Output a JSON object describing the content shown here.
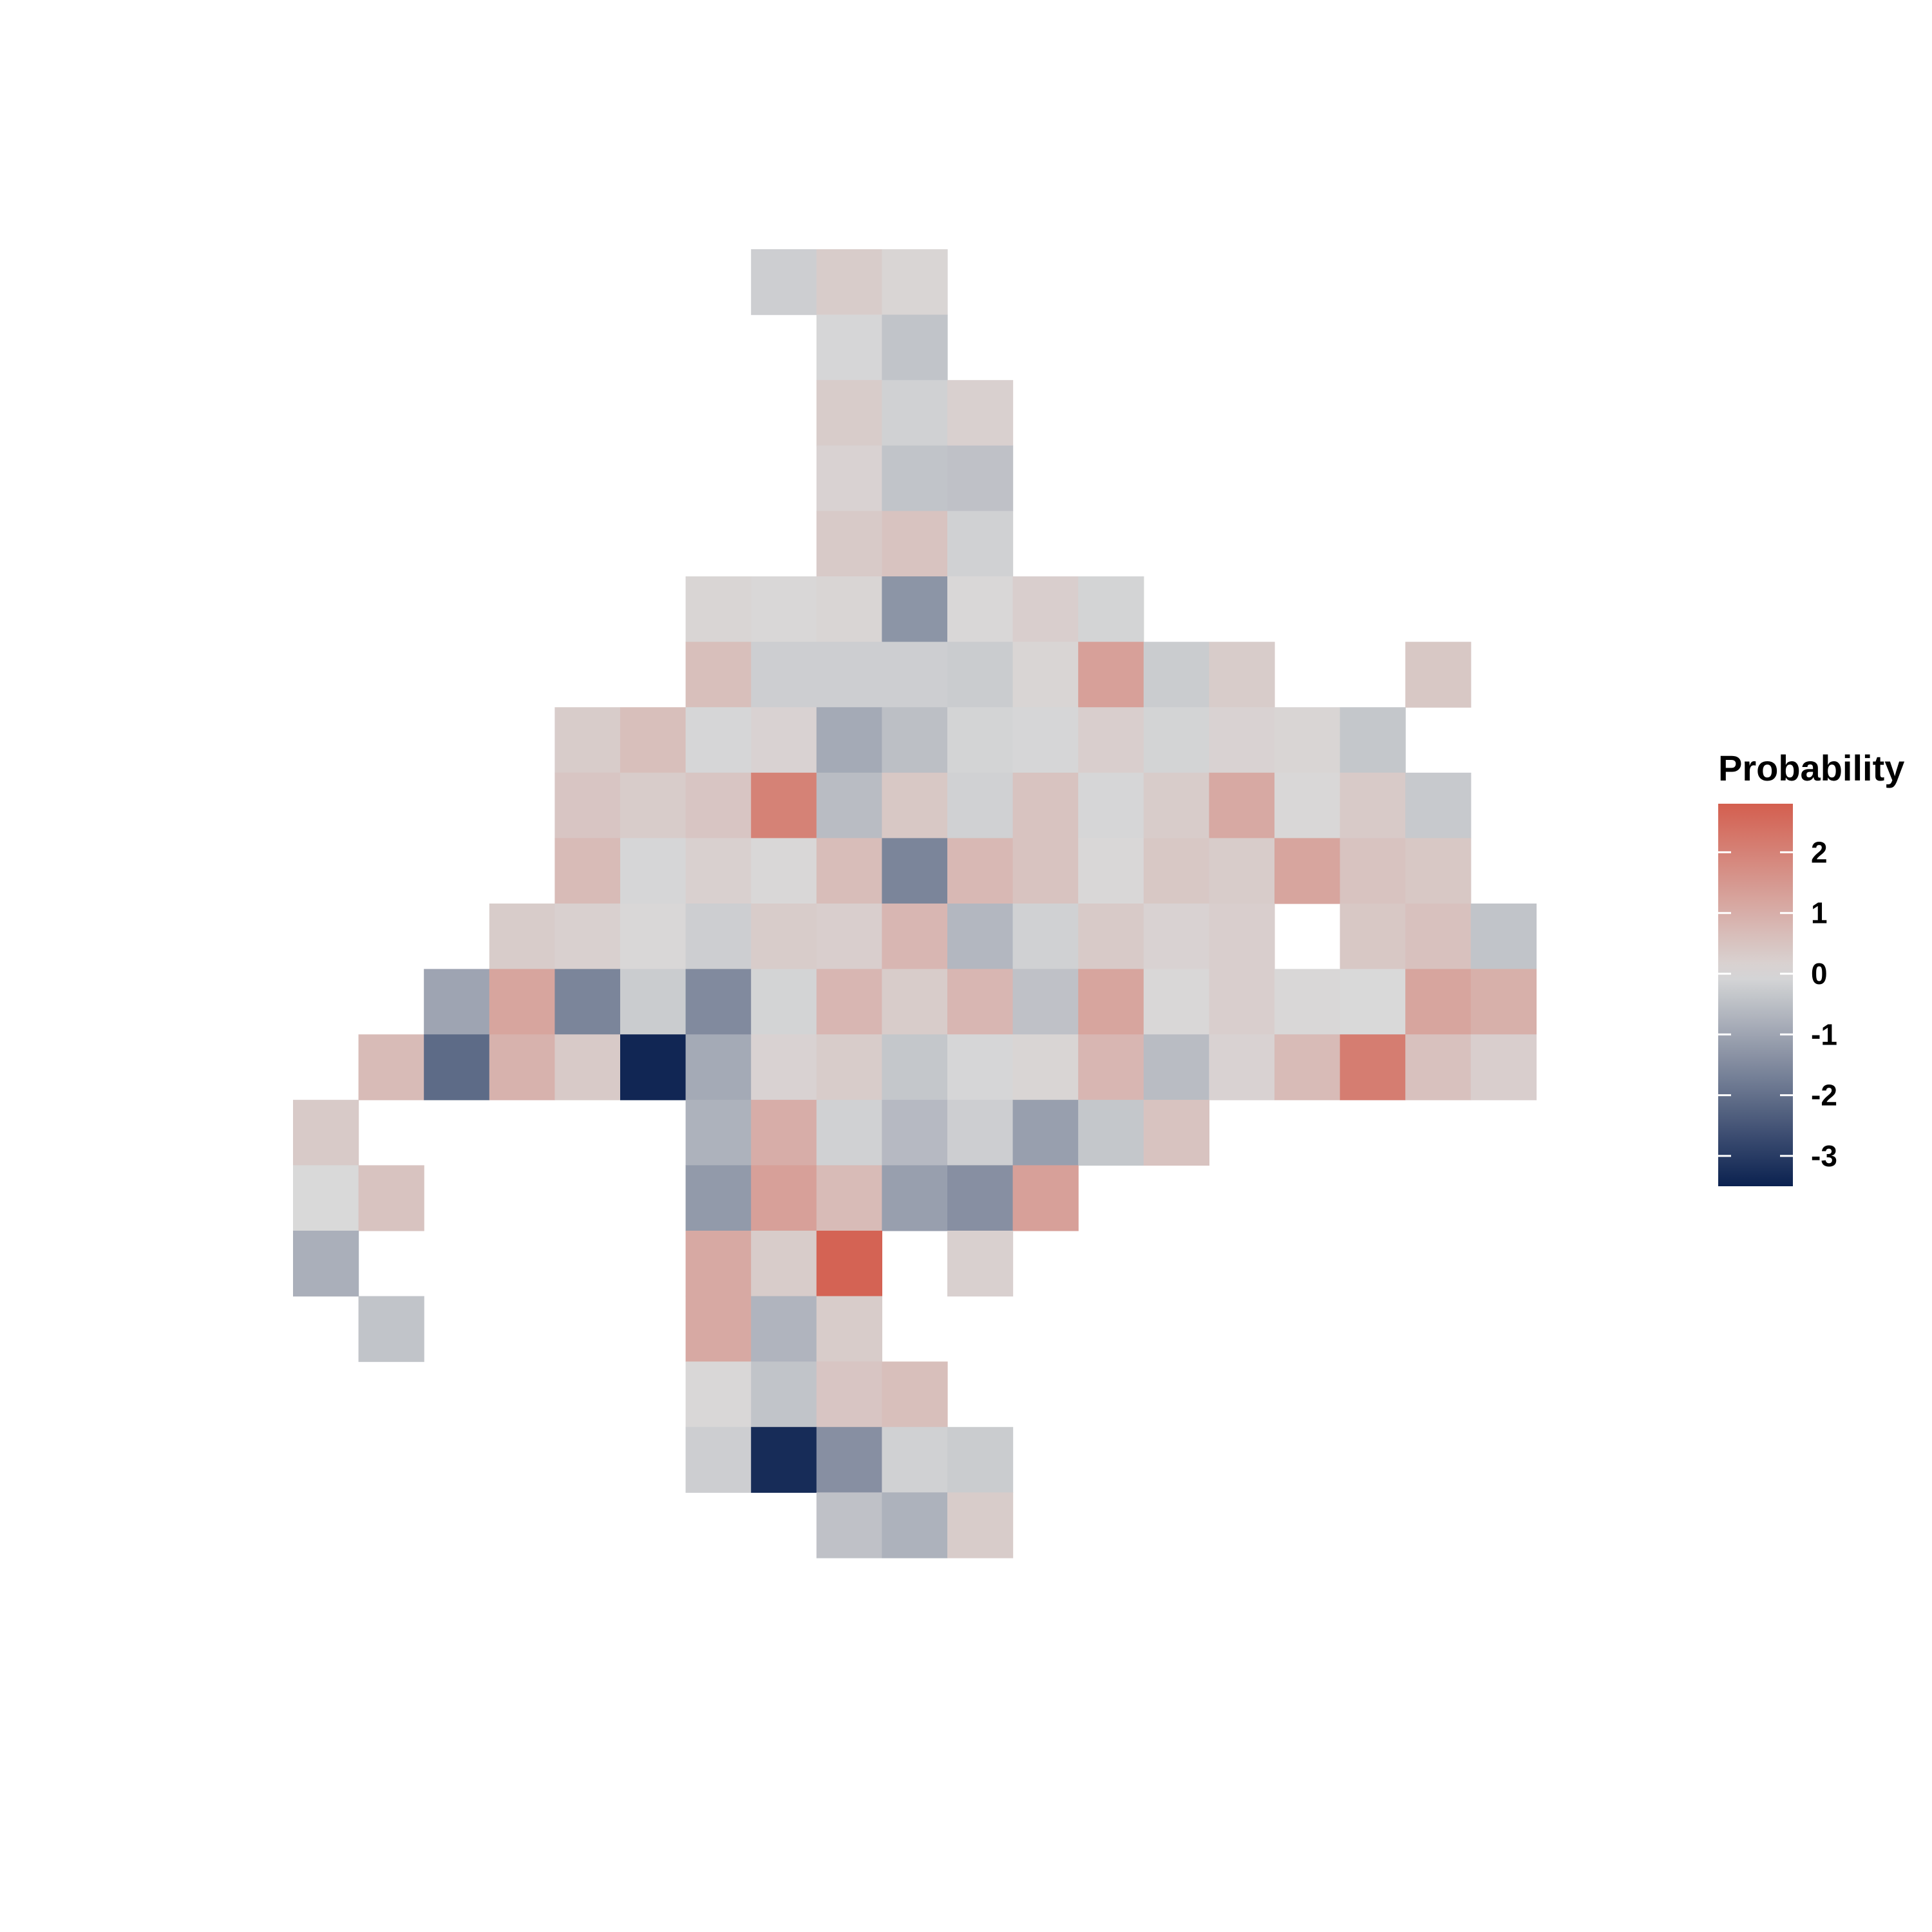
{
  "chart_data": {
    "type": "heatmap",
    "title": "",
    "xlabel": "",
    "ylabel": "",
    "grid": false,
    "axes_visible": false,
    "legend": {
      "title": "Probability",
      "placement": "right",
      "ticks": [
        2,
        1,
        0,
        -1,
        -2,
        -3
      ],
      "range": [
        -3.5,
        2.8
      ]
    },
    "colors": {
      "low": "#0b2150",
      "mid": "#d9d9d9",
      "high": "#d45f4f",
      "background": "#ffffff"
    },
    "x": [
      1,
      2,
      3,
      4,
      5,
      6,
      7,
      8,
      9,
      10,
      11,
      12,
      13,
      14,
      15,
      16,
      17,
      18,
      19
    ],
    "y": [
      1,
      2,
      3,
      4,
      5,
      6,
      7,
      8,
      9,
      10,
      11,
      12,
      13,
      14,
      15,
      16,
      17,
      18,
      19,
      20
    ],
    "cells": [
      {
        "x": 8,
        "y": 20,
        "value": -0.2
      },
      {
        "x": 9,
        "y": 20,
        "value": 0.3
      },
      {
        "x": 10,
        "y": 20,
        "value": 0.1
      },
      {
        "x": 9,
        "y": 19,
        "value": -0.05
      },
      {
        "x": 10,
        "y": 19,
        "value": -0.4
      },
      {
        "x": 9,
        "y": 18,
        "value": 0.3
      },
      {
        "x": 10,
        "y": 18,
        "value": -0.15
      },
      {
        "x": 11,
        "y": 18,
        "value": 0.2
      },
      {
        "x": 9,
        "y": 17,
        "value": 0.15
      },
      {
        "x": 10,
        "y": 17,
        "value": -0.4
      },
      {
        "x": 11,
        "y": 17,
        "value": -0.45
      },
      {
        "x": 9,
        "y": 16,
        "value": 0.35
      },
      {
        "x": 10,
        "y": 16,
        "value": 0.5
      },
      {
        "x": 11,
        "y": 16,
        "value": -0.15
      },
      {
        "x": 7,
        "y": 15,
        "value": 0.1
      },
      {
        "x": 8,
        "y": 15,
        "value": 0.05
      },
      {
        "x": 9,
        "y": 15,
        "value": 0.1
      },
      {
        "x": 10,
        "y": 15,
        "value": -1.3
      },
      {
        "x": 11,
        "y": 15,
        "value": 0.05
      },
      {
        "x": 12,
        "y": 15,
        "value": 0.25
      },
      {
        "x": 13,
        "y": 15,
        "value": -0.1
      },
      {
        "x": 7,
        "y": 14,
        "value": 0.6
      },
      {
        "x": 8,
        "y": 14,
        "value": -0.2
      },
      {
        "x": 9,
        "y": 14,
        "value": -0.2
      },
      {
        "x": 10,
        "y": 14,
        "value": -0.2
      },
      {
        "x": 11,
        "y": 14,
        "value": -0.25
      },
      {
        "x": 12,
        "y": 14,
        "value": 0.1
      },
      {
        "x": 13,
        "y": 14,
        "value": 1.3
      },
      {
        "x": 14,
        "y": 14,
        "value": -0.25
      },
      {
        "x": 15,
        "y": 14,
        "value": 0.3
      },
      {
        "x": 18,
        "y": 14,
        "value": 0.4
      },
      {
        "x": 5,
        "y": 13,
        "value": 0.3
      },
      {
        "x": 6,
        "y": 13,
        "value": 0.6
      },
      {
        "x": 7,
        "y": 13,
        "value": -0.05
      },
      {
        "x": 8,
        "y": 13,
        "value": 0.15
      },
      {
        "x": 9,
        "y": 13,
        "value": -0.9
      },
      {
        "x": 10,
        "y": 13,
        "value": -0.5
      },
      {
        "x": 11,
        "y": 13,
        "value": -0.1
      },
      {
        "x": 12,
        "y": 13,
        "value": -0.05
      },
      {
        "x": 13,
        "y": 13,
        "value": 0.25
      },
      {
        "x": 14,
        "y": 13,
        "value": -0.1
      },
      {
        "x": 15,
        "y": 13,
        "value": 0.15
      },
      {
        "x": 16,
        "y": 13,
        "value": 0.1
      },
      {
        "x": 17,
        "y": 13,
        "value": -0.35
      },
      {
        "x": 5,
        "y": 12,
        "value": 0.45
      },
      {
        "x": 6,
        "y": 12,
        "value": 0.3
      },
      {
        "x": 7,
        "y": 12,
        "value": 0.45
      },
      {
        "x": 8,
        "y": 12,
        "value": 2.0
      },
      {
        "x": 9,
        "y": 12,
        "value": -0.55
      },
      {
        "x": 10,
        "y": 12,
        "value": 0.4
      },
      {
        "x": 11,
        "y": 12,
        "value": -0.15
      },
      {
        "x": 12,
        "y": 12,
        "value": 0.5
      },
      {
        "x": 13,
        "y": 12,
        "value": -0.05
      },
      {
        "x": 14,
        "y": 12,
        "value": 0.3
      },
      {
        "x": 15,
        "y": 12,
        "value": 1.1
      },
      {
        "x": 16,
        "y": 12,
        "value": 0.05
      },
      {
        "x": 17,
        "y": 12,
        "value": 0.35
      },
      {
        "x": 18,
        "y": 12,
        "value": -0.3
      },
      {
        "x": 5,
        "y": 11,
        "value": 0.7
      },
      {
        "x": 6,
        "y": 11,
        "value": -0.05
      },
      {
        "x": 7,
        "y": 11,
        "value": 0.2
      },
      {
        "x": 8,
        "y": 11,
        "value": 0.05
      },
      {
        "x": 9,
        "y": 11,
        "value": 0.65
      },
      {
        "x": 10,
        "y": 11,
        "value": -1.6
      },
      {
        "x": 11,
        "y": 11,
        "value": 0.75
      },
      {
        "x": 12,
        "y": 11,
        "value": 0.5
      },
      {
        "x": 13,
        "y": 11,
        "value": 0.05
      },
      {
        "x": 14,
        "y": 11,
        "value": 0.4
      },
      {
        "x": 15,
        "y": 11,
        "value": 0.3
      },
      {
        "x": 16,
        "y": 11,
        "value": 1.2
      },
      {
        "x": 17,
        "y": 11,
        "value": 0.5
      },
      {
        "x": 18,
        "y": 11,
        "value": 0.4
      },
      {
        "x": 4,
        "y": 10,
        "value": 0.3
      },
      {
        "x": 5,
        "y": 10,
        "value": 0.2
      },
      {
        "x": 6,
        "y": 10,
        "value": 0.05
      },
      {
        "x": 7,
        "y": 10,
        "value": -0.2
      },
      {
        "x": 8,
        "y": 10,
        "value": 0.3
      },
      {
        "x": 9,
        "y": 10,
        "value": 0.25
      },
      {
        "x": 10,
        "y": 10,
        "value": 0.8
      },
      {
        "x": 11,
        "y": 10,
        "value": -0.65
      },
      {
        "x": 12,
        "y": 10,
        "value": -0.15
      },
      {
        "x": 13,
        "y": 10,
        "value": 0.35
      },
      {
        "x": 14,
        "y": 10,
        "value": 0.15
      },
      {
        "x": 15,
        "y": 10,
        "value": 0.25
      },
      {
        "x": 17,
        "y": 10,
        "value": 0.4
      },
      {
        "x": 18,
        "y": 10,
        "value": 0.55
      },
      {
        "x": 19,
        "y": 10,
        "value": -0.4
      },
      {
        "x": 3,
        "y": 9,
        "value": -1.0
      },
      {
        "x": 4,
        "y": 9,
        "value": 1.2
      },
      {
        "x": 5,
        "y": 9,
        "value": -1.6
      },
      {
        "x": 6,
        "y": 9,
        "value": -0.25
      },
      {
        "x": 7,
        "y": 9,
        "value": -1.5
      },
      {
        "x": 8,
        "y": 9,
        "value": -0.1
      },
      {
        "x": 9,
        "y": 9,
        "value": 0.8
      },
      {
        "x": 10,
        "y": 9,
        "value": 0.3
      },
      {
        "x": 11,
        "y": 9,
        "value": 0.8
      },
      {
        "x": 12,
        "y": 9,
        "value": -0.45
      },
      {
        "x": 13,
        "y": 9,
        "value": 1.2
      },
      {
        "x": 14,
        "y": 9,
        "value": 0.05
      },
      {
        "x": 15,
        "y": 9,
        "value": 0.25
      },
      {
        "x": 16,
        "y": 9,
        "value": 0.05
      },
      {
        "x": 17,
        "y": 9,
        "value": 0.0
      },
      {
        "x": 18,
        "y": 9,
        "value": 1.2
      },
      {
        "x": 19,
        "y": 9,
        "value": 0.95
      },
      {
        "x": 2,
        "y": 8,
        "value": 0.7
      },
      {
        "x": 3,
        "y": 8,
        "value": -2.1
      },
      {
        "x": 4,
        "y": 8,
        "value": 0.9
      },
      {
        "x": 5,
        "y": 8,
        "value": 0.35
      },
      {
        "x": 6,
        "y": 8,
        "value": -3.4
      },
      {
        "x": 7,
        "y": 8,
        "value": -0.9
      },
      {
        "x": 8,
        "y": 8,
        "value": 0.15
      },
      {
        "x": 9,
        "y": 8,
        "value": 0.3
      },
      {
        "x": 10,
        "y": 8,
        "value": -0.35
      },
      {
        "x": 11,
        "y": 8,
        "value": -0.05
      },
      {
        "x": 12,
        "y": 8,
        "value": 0.1
      },
      {
        "x": 13,
        "y": 8,
        "value": 0.8
      },
      {
        "x": 14,
        "y": 8,
        "value": -0.55
      },
      {
        "x": 15,
        "y": 8,
        "value": 0.15
      },
      {
        "x": 16,
        "y": 8,
        "value": 0.7
      },
      {
        "x": 17,
        "y": 8,
        "value": 2.1
      },
      {
        "x": 18,
        "y": 8,
        "value": 0.55
      },
      {
        "x": 19,
        "y": 8,
        "value": 0.25
      },
      {
        "x": 1,
        "y": 7,
        "value": 0.35
      },
      {
        "x": 7,
        "y": 7,
        "value": -0.75
      },
      {
        "x": 8,
        "y": 7,
        "value": 1.0
      },
      {
        "x": 9,
        "y": 7,
        "value": -0.15
      },
      {
        "x": 10,
        "y": 7,
        "value": -0.6
      },
      {
        "x": 11,
        "y": 7,
        "value": -0.2
      },
      {
        "x": 12,
        "y": 7,
        "value": -1.1
      },
      {
        "x": 13,
        "y": 7,
        "value": -0.35
      },
      {
        "x": 14,
        "y": 7,
        "value": 0.5
      },
      {
        "x": 1,
        "y": 6,
        "value": 0.0
      },
      {
        "x": 2,
        "y": 6,
        "value": 0.5
      },
      {
        "x": 7,
        "y": 6,
        "value": -1.2
      },
      {
        "x": 8,
        "y": 6,
        "value": 1.3
      },
      {
        "x": 9,
        "y": 6,
        "value": 0.7
      },
      {
        "x": 10,
        "y": 6,
        "value": -1.1
      },
      {
        "x": 11,
        "y": 6,
        "value": -1.4
      },
      {
        "x": 12,
        "y": 6,
        "value": 1.3
      },
      {
        "x": 1,
        "y": 5,
        "value": -0.8
      },
      {
        "x": 7,
        "y": 5,
        "value": 1.1
      },
      {
        "x": 8,
        "y": 5,
        "value": 0.3
      },
      {
        "x": 9,
        "y": 5,
        "value": 2.7
      },
      {
        "x": 11,
        "y": 5,
        "value": 0.2
      },
      {
        "x": 2,
        "y": 4,
        "value": -0.4
      },
      {
        "x": 7,
        "y": 4,
        "value": 1.1
      },
      {
        "x": 8,
        "y": 4,
        "value": -0.7
      },
      {
        "x": 9,
        "y": 4,
        "value": 0.3
      },
      {
        "x": 7,
        "y": 3,
        "value": 0.05
      },
      {
        "x": 8,
        "y": 3,
        "value": -0.4
      },
      {
        "x": 9,
        "y": 3,
        "value": 0.45
      },
      {
        "x": 10,
        "y": 3,
        "value": 0.6
      },
      {
        "x": 7,
        "y": 2,
        "value": -0.2
      },
      {
        "x": 8,
        "y": 2,
        "value": -3.3
      },
      {
        "x": 9,
        "y": 2,
        "value": -1.4
      },
      {
        "x": 10,
        "y": 2,
        "value": -0.15
      },
      {
        "x": 11,
        "y": 2,
        "value": -0.25
      },
      {
        "x": 9,
        "y": 1,
        "value": -0.45
      },
      {
        "x": 10,
        "y": 1,
        "value": -0.75
      },
      {
        "x": 11,
        "y": 1,
        "value": 0.3
      }
    ]
  }
}
